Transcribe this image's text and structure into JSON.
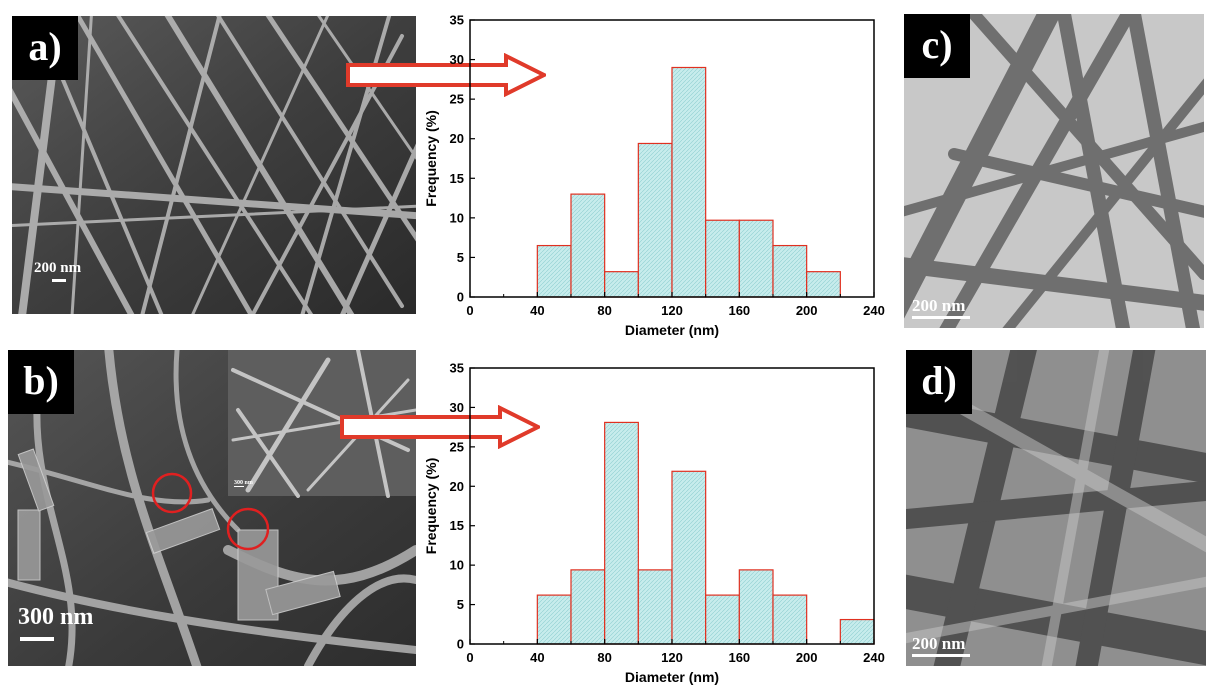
{
  "panels": {
    "a": {
      "label": "a)",
      "scale": "200 nm"
    },
    "b": {
      "label": "b)",
      "scale": "300 nm",
      "inset_scale": "300 nm"
    },
    "c": {
      "label": "c)",
      "scale": "200 nm"
    },
    "d": {
      "label": "d)",
      "scale": "200 nm"
    }
  },
  "colors": {
    "bar_fill": "#c7ecec",
    "bar_stroke": "#e03020",
    "arrow": "#e03a2a"
  },
  "chart_data": [
    {
      "type": "bar",
      "xlabel": "Diameter (nm)",
      "ylabel": "Frequency (%)",
      "xlim": [
        0,
        240
      ],
      "ylim": [
        0,
        35
      ],
      "xticks": [
        "0",
        "40",
        "80",
        "120",
        "160",
        "200",
        "240"
      ],
      "yticks": [
        "0",
        "5",
        "10",
        "15",
        "20",
        "25",
        "30",
        "35"
      ],
      "bins": [
        [
          40,
          60
        ],
        [
          60,
          80
        ],
        [
          80,
          100
        ],
        [
          100,
          120
        ],
        [
          120,
          140
        ],
        [
          140,
          160
        ],
        [
          160,
          180
        ],
        [
          180,
          200
        ],
        [
          200,
          220
        ]
      ],
      "values": [
        6.5,
        13,
        3.2,
        19.4,
        29,
        9.7,
        9.7,
        6.5,
        3.2
      ]
    },
    {
      "type": "bar",
      "xlabel": "Diameter (nm)",
      "ylabel": "Frequency (%)",
      "xlim": [
        0,
        240
      ],
      "ylim": [
        0,
        35
      ],
      "xticks": [
        "0",
        "40",
        "80",
        "120",
        "160",
        "200",
        "240"
      ],
      "yticks": [
        "0",
        "5",
        "10",
        "15",
        "20",
        "25",
        "30",
        "35"
      ],
      "bins": [
        [
          40,
          60
        ],
        [
          60,
          80
        ],
        [
          80,
          100
        ],
        [
          100,
          120
        ],
        [
          120,
          140
        ],
        [
          140,
          160
        ],
        [
          160,
          180
        ],
        [
          180,
          200
        ],
        [
          220,
          240
        ]
      ],
      "values": [
        6.2,
        9.4,
        28.1,
        9.4,
        21.9,
        6.2,
        9.4,
        6.2,
        3.1
      ]
    }
  ]
}
